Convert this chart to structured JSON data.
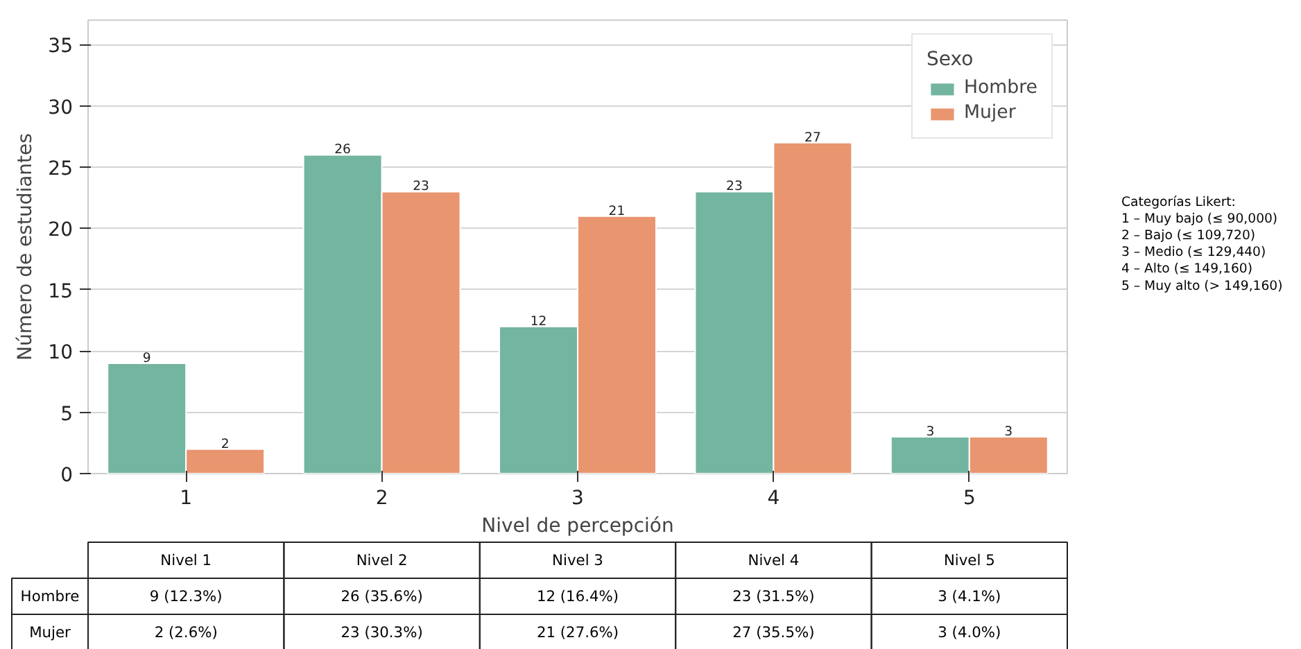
{
  "chart_data": {
    "type": "bar",
    "xlabel": "Nivel de percepción",
    "ylabel": "Número de estudiantes",
    "legend_title": "Sexo",
    "categories": [
      "1",
      "2",
      "3",
      "4",
      "5"
    ],
    "series": [
      {
        "name": "Hombre",
        "color": "#73b5a0",
        "values": [
          9,
          26,
          12,
          23,
          3
        ]
      },
      {
        "name": "Mujer",
        "color": "#e9956f",
        "values": [
          2,
          23,
          21,
          27,
          3
        ]
      }
    ],
    "ylim": [
      0,
      37
    ],
    "yticks": [
      0,
      5,
      10,
      15,
      20,
      25,
      30,
      35
    ],
    "grid": "y",
    "legend": "top right",
    "data_labels": true,
    "annotations": [
      "Categorías Likert:\n1 – Muy bajo (≤ 90,000)\n2 – Bajo (≤ 109,720)\n3 – Medio (≤ 129,440)\n4 – Alto (≤ 149,160)\n5 – Muy alto (> 149,160)",
      "Nivel 1",
      "Nivel 2",
      "Nivel 3",
      "Nivel 4",
      "Nivel 5",
      "9 (12.3%)",
      "26 (35.6%)",
      "12 (16.4%)",
      "23 (31.5%)",
      "3 (4.1%)",
      "2 (2.6%)",
      "23 (30.3%)",
      "21 (27.6%)",
      "27 (35.5%)",
      "3 (4.0%)"
    ]
  }
}
